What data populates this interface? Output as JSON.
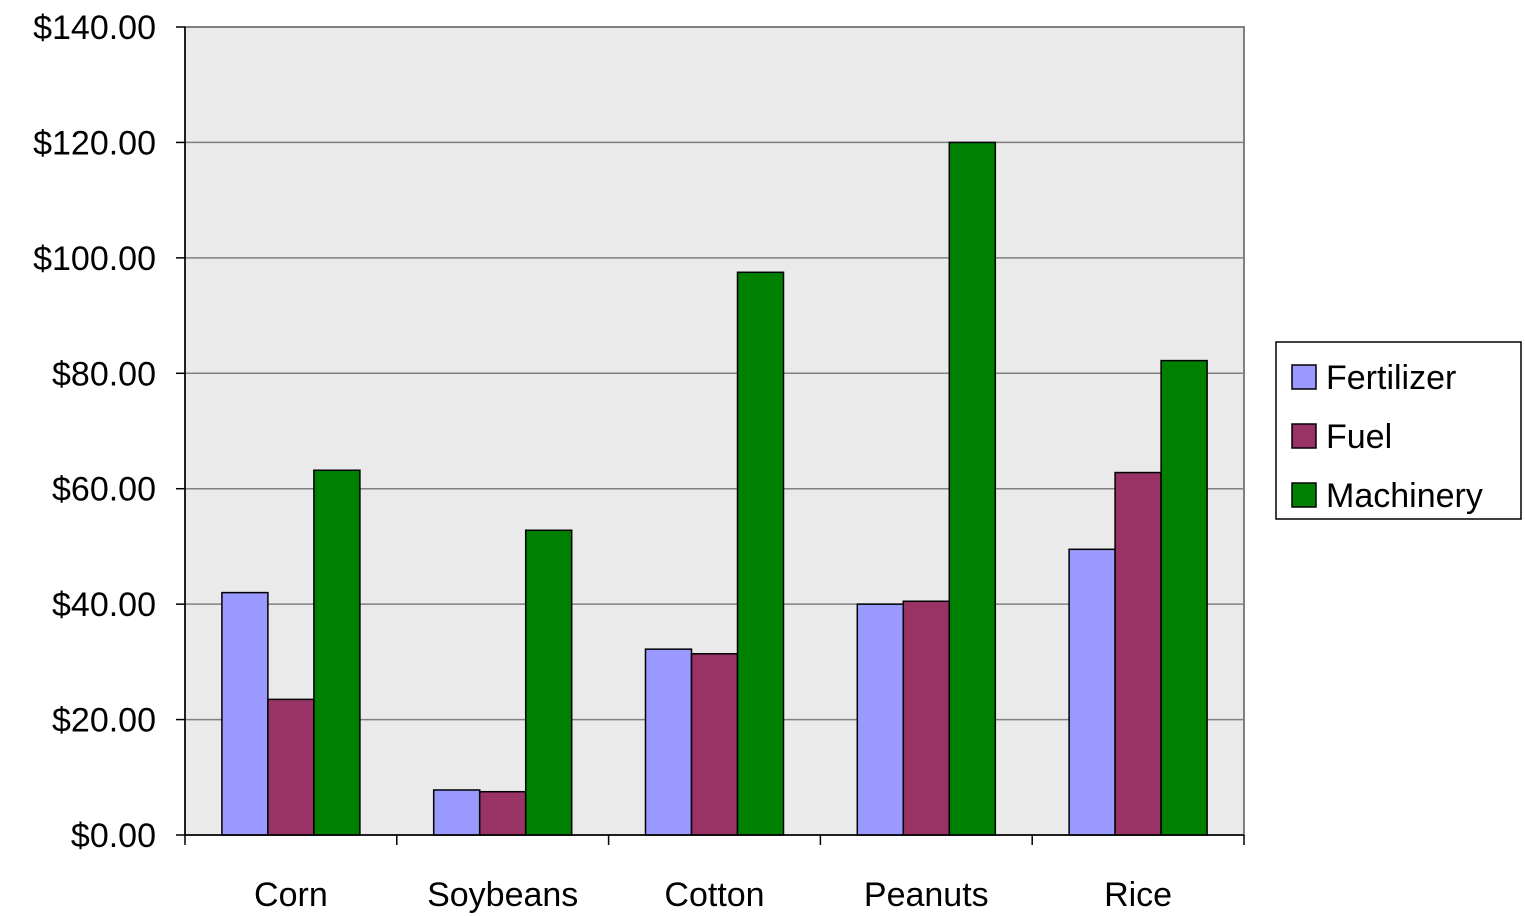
{
  "chart_data": {
    "type": "bar",
    "title": "",
    "xlabel": "",
    "ylabel": "",
    "categories": [
      "Corn",
      "Soybeans",
      "Cotton",
      "Peanuts",
      "Rice"
    ],
    "series": [
      {
        "name": "Fertilizer",
        "color": "#9999ff",
        "values": [
          42.0,
          7.8,
          32.2,
          40.0,
          49.5
        ]
      },
      {
        "name": "Fuel",
        "color": "#993366",
        "values": [
          23.5,
          7.5,
          31.4,
          40.5,
          62.8
        ]
      },
      {
        "name": "Machinery",
        "color": "#008000",
        "values": [
          63.2,
          52.8,
          97.5,
          120.0,
          82.2
        ]
      }
    ],
    "ylim": [
      0,
      140
    ],
    "yticks": [
      0,
      20,
      40,
      60,
      80,
      100,
      120,
      140
    ],
    "ytick_labels": [
      "$0.00",
      "$20.00",
      "$40.00",
      "$60.00",
      "$80.00",
      "$100.00",
      "$120.00",
      "$140.00"
    ],
    "grid": true,
    "plot_background": "#eaeaea",
    "legend_position": "right"
  }
}
